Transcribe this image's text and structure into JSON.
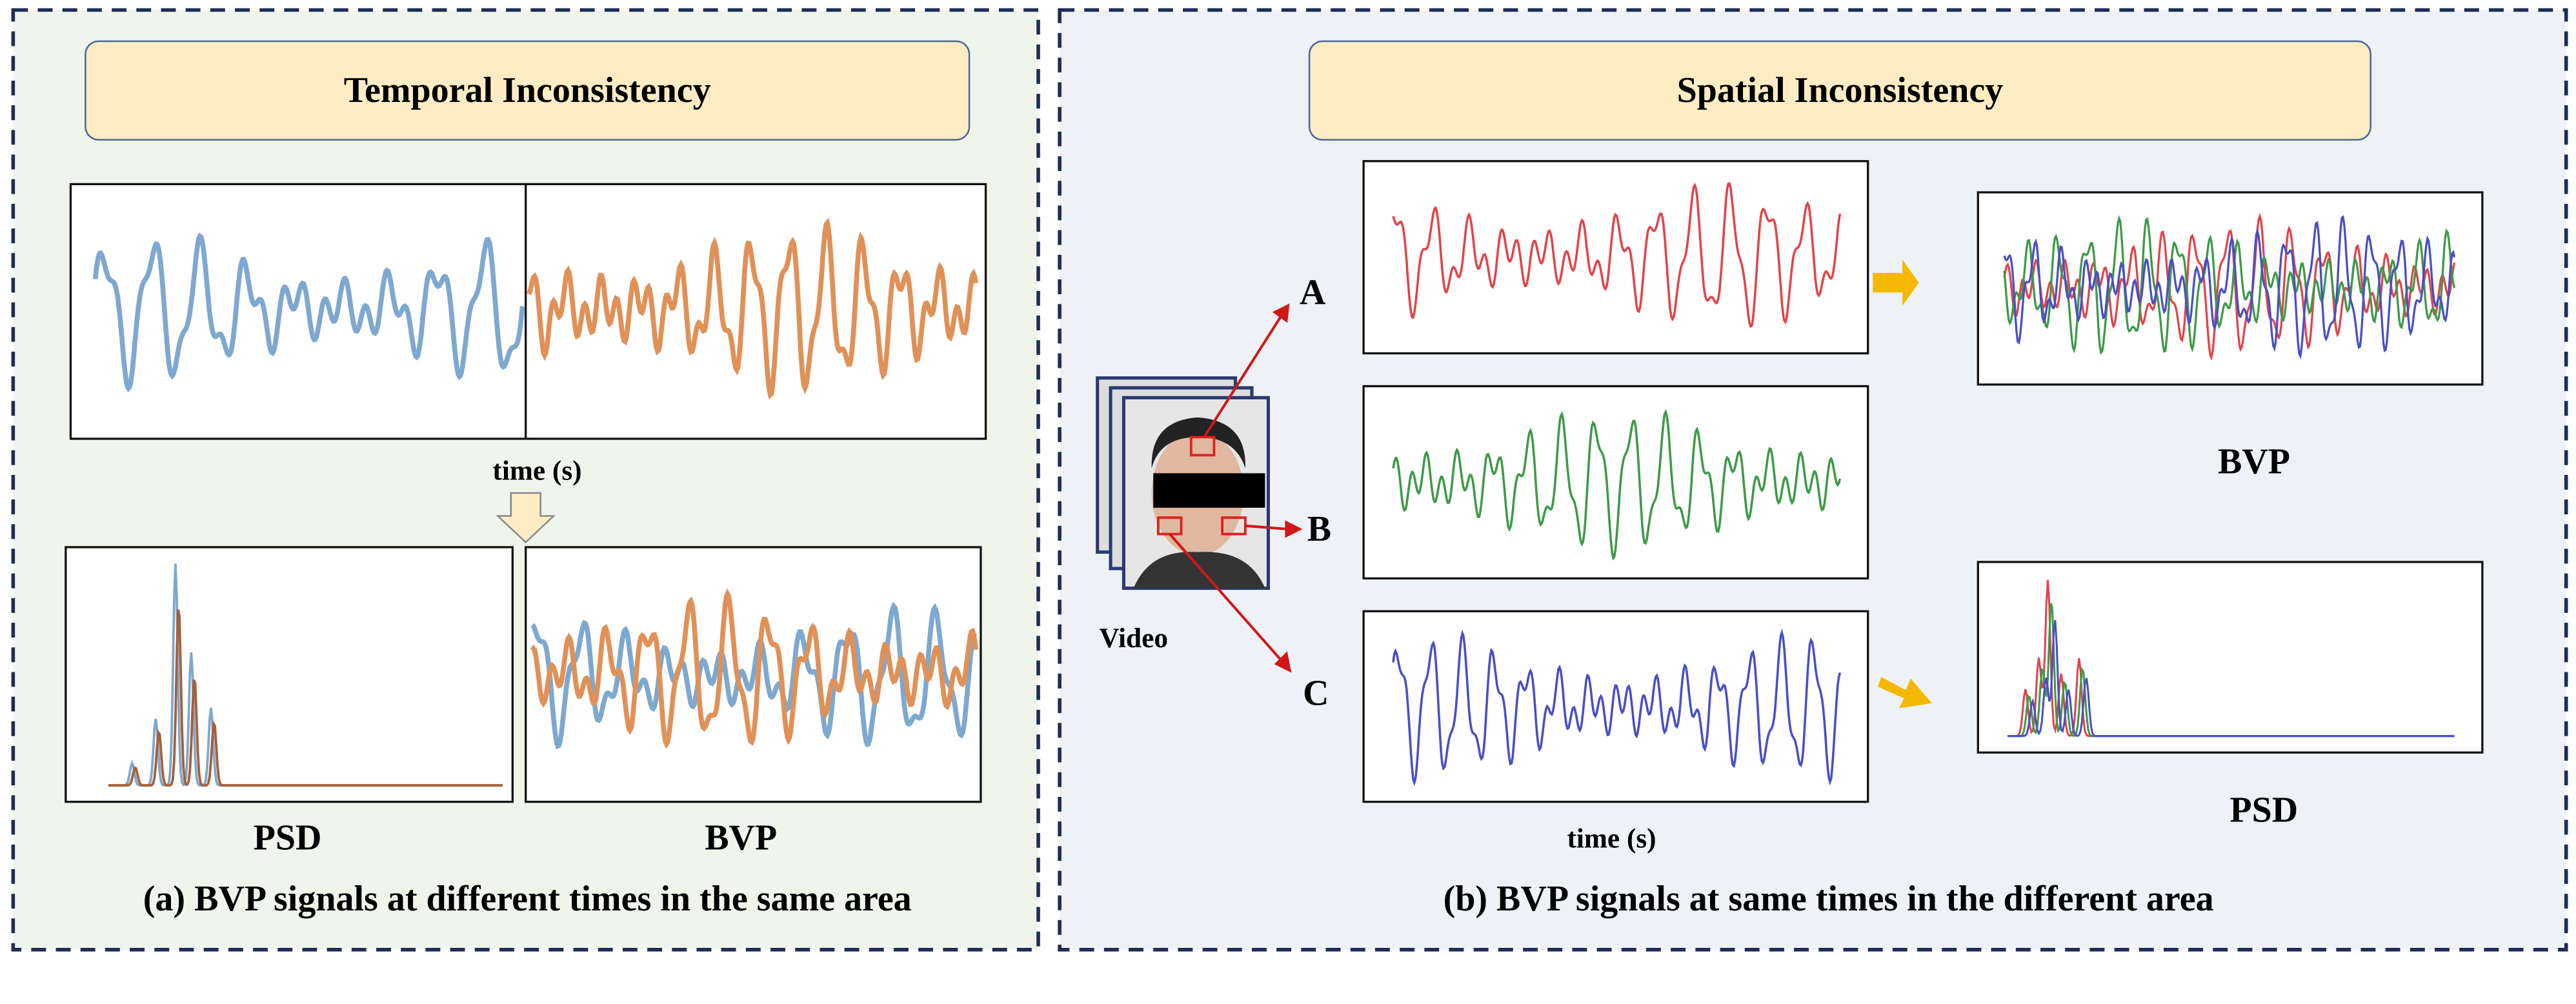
{
  "left": {
    "title": "Temporal Inconsistency",
    "time_label": "time (s)",
    "psd_label": "PSD",
    "bvp_label": "BVP",
    "caption": "(a) BVP signals at different times in the same area"
  },
  "right": {
    "title": "Spatial Inconsistency",
    "video_label": "Video",
    "regions": [
      "A",
      "B",
      "C"
    ],
    "time_label": "time (s)",
    "bvp_label": "BVP",
    "psd_label": "PSD",
    "caption": "(b) BVP signals at same times in the different area"
  }
}
